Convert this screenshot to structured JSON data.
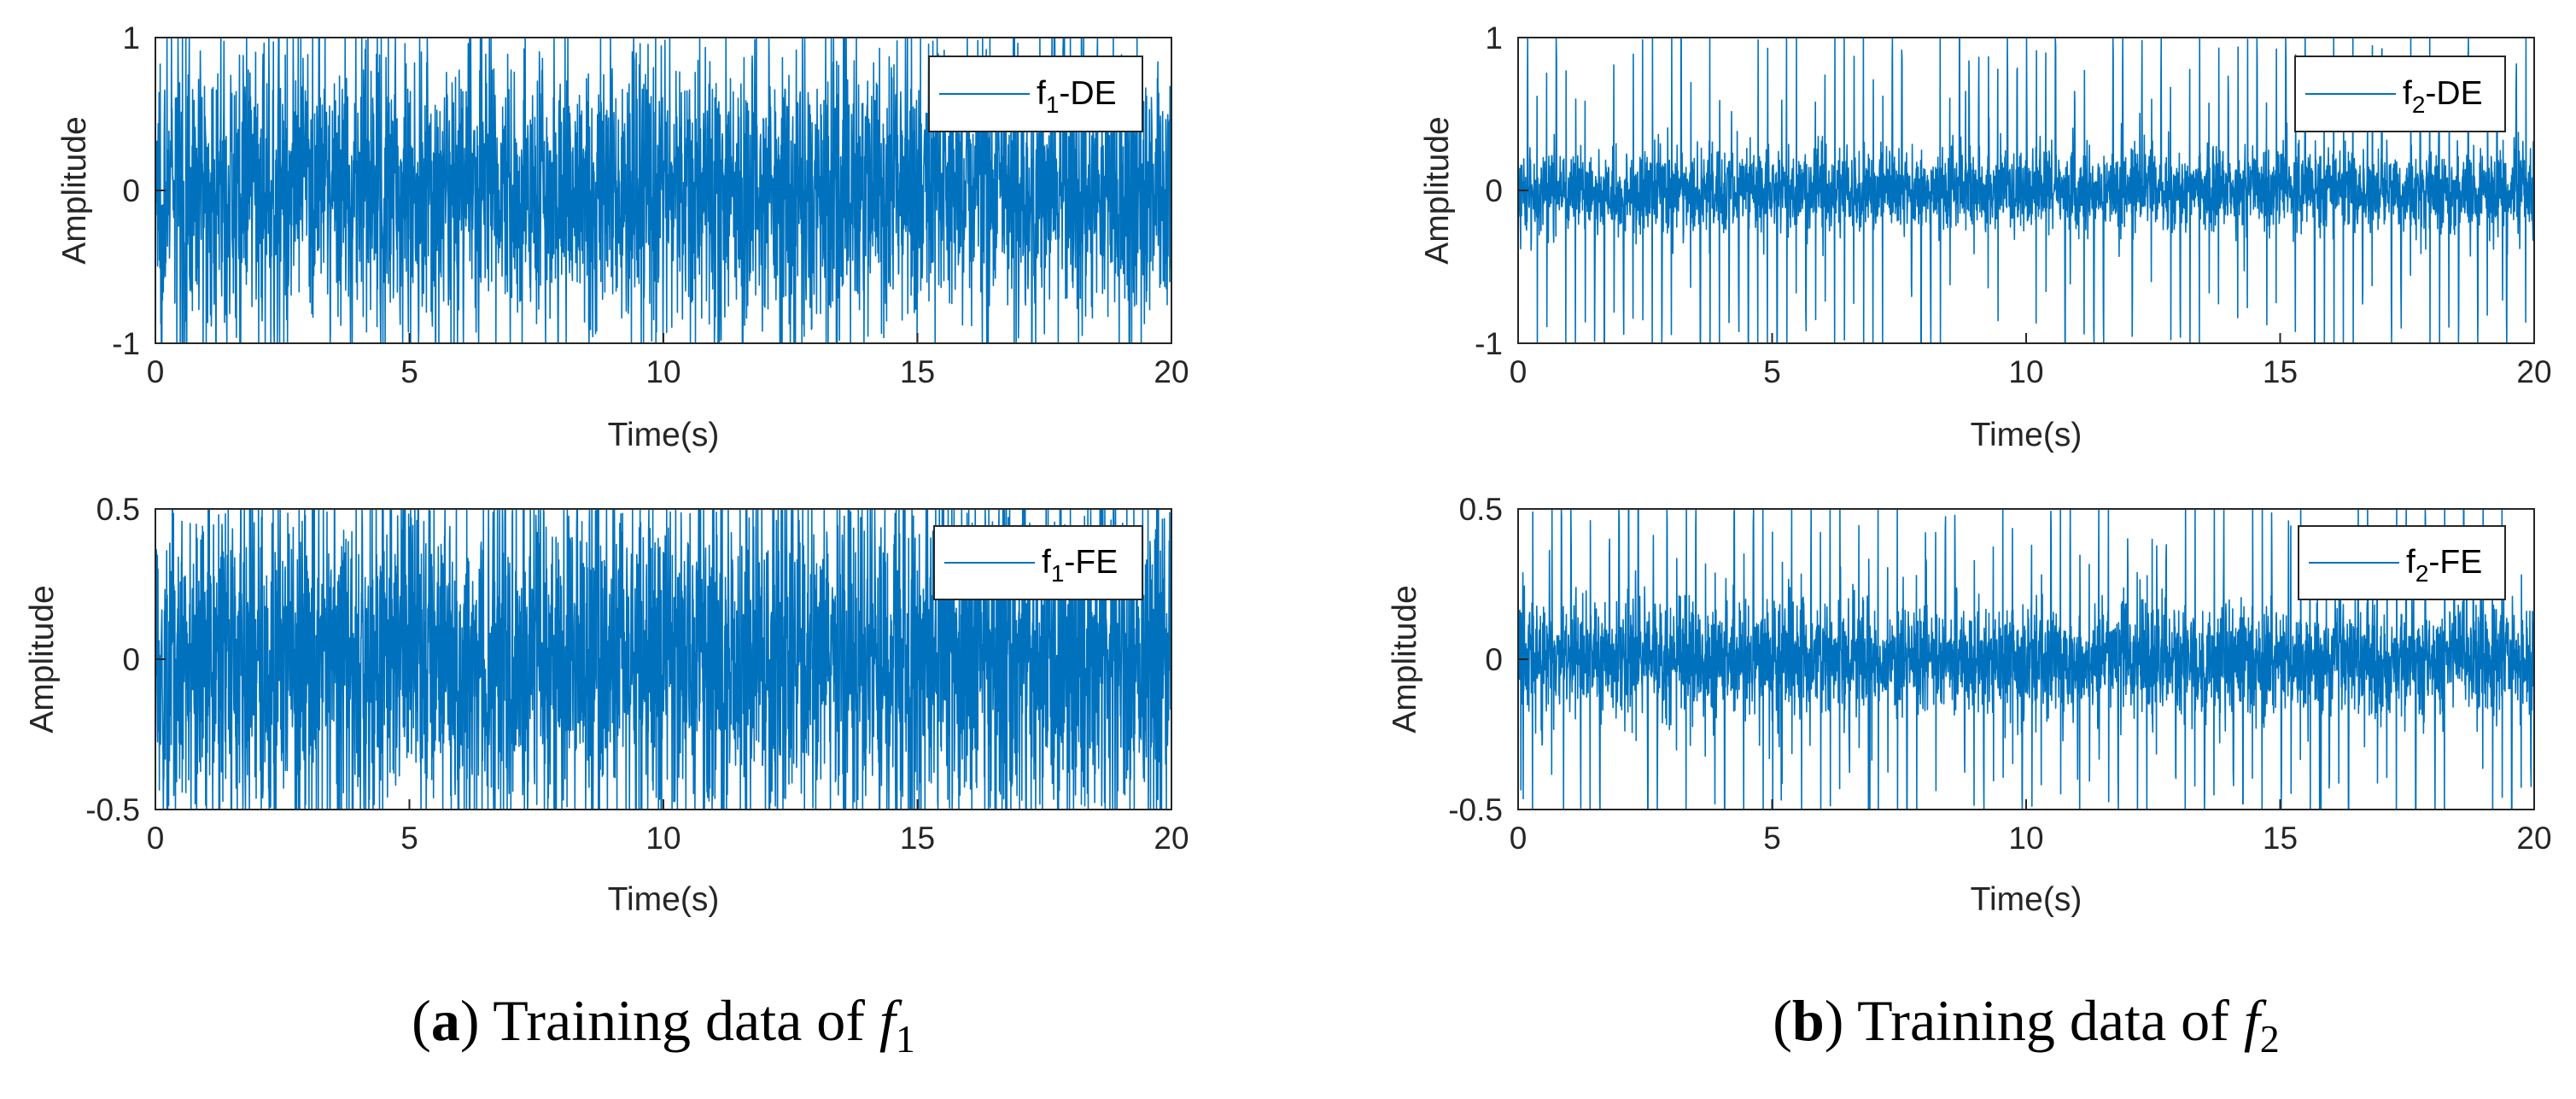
{
  "colors": {
    "signal": "#0072BD",
    "axis": "#262626",
    "background": "#ffffff"
  },
  "chart_data": [
    {
      "type": "line",
      "panel": "a-top",
      "legend": "f1-DE",
      "legend_base": "f",
      "legend_sub": "1",
      "legend_suffix": "-DE",
      "xlabel": "Time(s)",
      "ylabel": "Amplitude",
      "xlim": [
        0,
        20
      ],
      "ylim": [
        -1,
        1
      ],
      "xticks": [
        "0",
        "5",
        "10",
        "15",
        "20"
      ],
      "yticks": [
        "-1",
        "0",
        "1"
      ],
      "signal": {
        "kind": "dense_vibration",
        "rms": 0.42,
        "peak": 1.0,
        "clipped": true
      }
    },
    {
      "type": "line",
      "panel": "b-top",
      "legend": "f2-DE",
      "legend_base": "f",
      "legend_sub": "2",
      "legend_suffix": "-DE",
      "xlabel": "Time(s)",
      "ylabel": "Amplitude",
      "xlim": [
        0,
        20
      ],
      "ylim": [
        -1,
        1
      ],
      "xticks": [
        "0",
        "5",
        "10",
        "15",
        "20"
      ],
      "yticks": [
        "-1",
        "0",
        "1"
      ],
      "signal": {
        "kind": "noise_with_impulses",
        "rms": 0.13,
        "peak": 1.0,
        "impulse_interval_s": 0.19
      }
    },
    {
      "type": "line",
      "panel": "a-bottom",
      "legend": "f1-FE",
      "legend_base": "f",
      "legend_sub": "1",
      "legend_suffix": "-FE",
      "xlabel": "Time(s)",
      "ylabel": "Amplitude",
      "xlim": [
        0,
        20
      ],
      "ylim": [
        -0.5,
        0.5
      ],
      "xticks": [
        "0",
        "5",
        "10",
        "15",
        "20"
      ],
      "yticks": [
        "-0.5",
        "0",
        "0.5"
      ],
      "signal": {
        "kind": "dense_vibration",
        "rms": 0.26,
        "peak": 0.5,
        "clipped": true
      }
    },
    {
      "type": "line",
      "panel": "b-bottom",
      "legend": "f2-FE",
      "legend_base": "f",
      "legend_sub": "2",
      "legend_suffix": "-FE",
      "xlabel": "Time(s)",
      "ylabel": "Amplitude",
      "xlim": [
        0,
        20
      ],
      "ylim": [
        -0.5,
        0.5
      ],
      "xticks": [
        "0",
        "5",
        "10",
        "15",
        "20"
      ],
      "yticks": [
        "-0.5",
        "0",
        "0.5"
      ],
      "signal": {
        "kind": "noise_with_impulses",
        "rms": 0.09,
        "peak": 0.5,
        "impulse_interval_s": 0.19
      }
    }
  ],
  "captions": [
    {
      "label": "a",
      "text": "Training data of ",
      "var": "f",
      "sub": "1"
    },
    {
      "label": "b",
      "text": "Training data of ",
      "var": "f",
      "sub": "2"
    }
  ]
}
